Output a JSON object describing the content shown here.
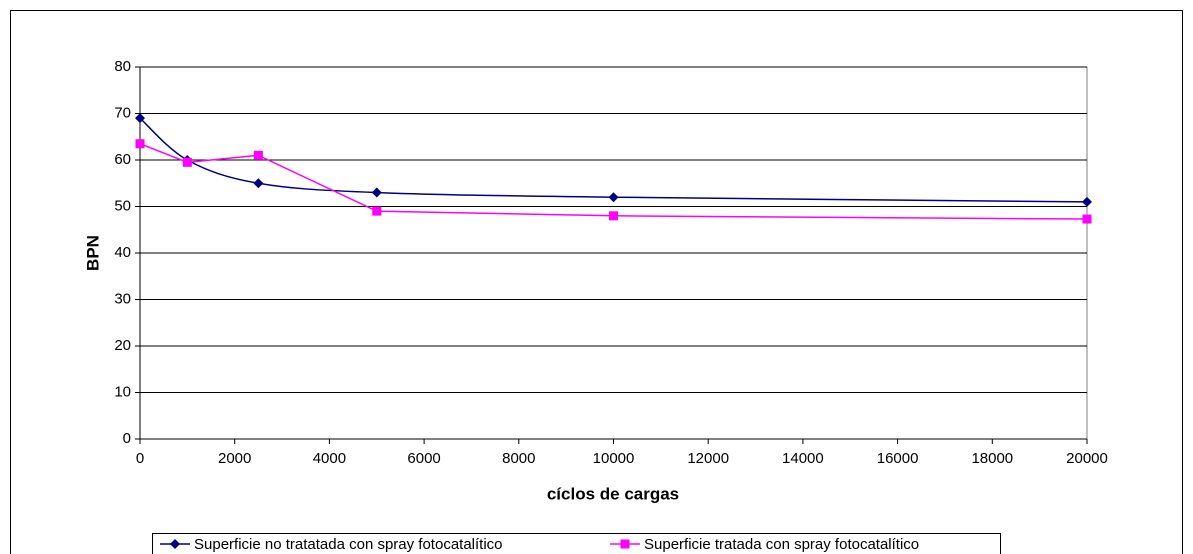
{
  "chart_data": {
    "type": "line",
    "x": [
      0,
      1000,
      2500,
      5000,
      10000,
      20000
    ],
    "series": [
      {
        "name": "Superficie no tratatada con spray fotocatalítico",
        "color": "#000080",
        "marker": "diamond",
        "smooth": true,
        "values": [
          69,
          60,
          55,
          53,
          52,
          51
        ]
      },
      {
        "name": "Superficie tratada con spray fotocatalítico",
        "color": "#ff00ff",
        "marker": "square",
        "smooth": false,
        "values": [
          63.5,
          59.5,
          61,
          49,
          48,
          47.3
        ]
      }
    ],
    "xlabel": "cíclos de cargas",
    "ylabel": "BPN",
    "xlim": [
      0,
      20000
    ],
    "xticks": [
      0,
      2000,
      4000,
      6000,
      8000,
      10000,
      12000,
      14000,
      16000,
      18000,
      20000
    ],
    "ylim": [
      0,
      80
    ],
    "yticks": [
      0,
      10,
      20,
      30,
      40,
      50,
      60,
      70,
      80
    ],
    "grid": true,
    "legend": "bottom"
  }
}
